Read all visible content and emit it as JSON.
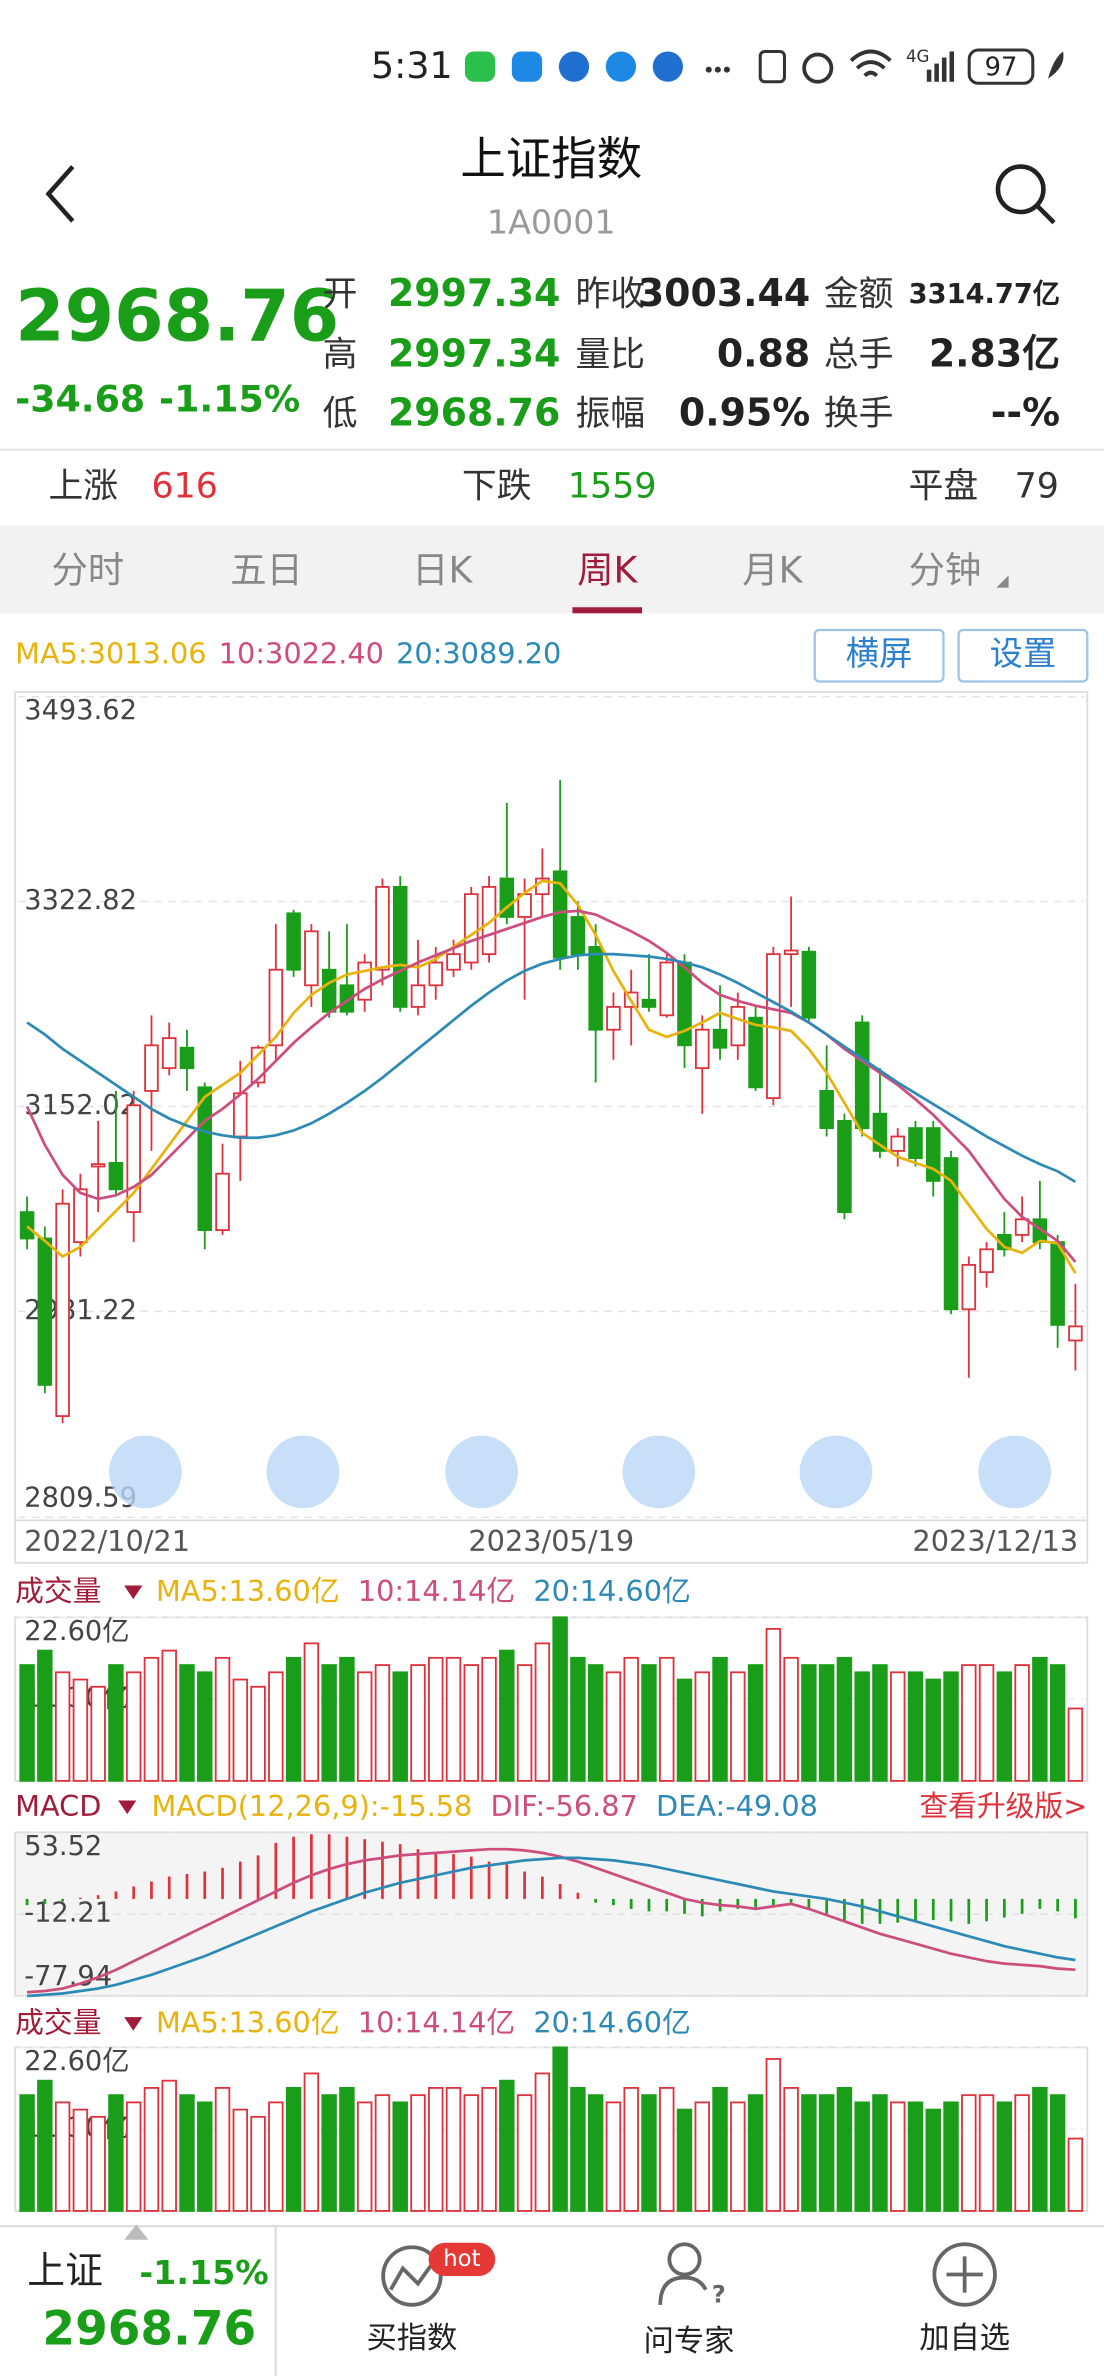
{
  "status_bar": {
    "time": "5:31",
    "network": "4G",
    "battery": "97"
  },
  "header": {
    "title": "上证指数",
    "code": "1A0001"
  },
  "quote": {
    "price": "2968.76",
    "change": "-34.68",
    "change_pct": "-1.15%",
    "fields": [
      {
        "label": "开",
        "value": "2997.34"
      },
      {
        "label": "昨收",
        "value": "3003.44"
      },
      {
        "label": "金额",
        "value": "3314.77亿"
      },
      {
        "label": "高",
        "value": "2997.34"
      },
      {
        "label": "量比",
        "value": "0.88"
      },
      {
        "label": "总手",
        "value": "2.83亿"
      },
      {
        "label": "低",
        "value": "2968.76"
      },
      {
        "label": "振幅",
        "value": "0.95%"
      },
      {
        "label": "换手",
        "value": "--%"
      }
    ]
  },
  "breadth": [
    {
      "label": "上涨",
      "value": "616"
    },
    {
      "label": "下跌",
      "value": "1559"
    },
    {
      "label": "平盘",
      "value": "79"
    }
  ],
  "tabs": [
    "分时",
    "五日",
    "日K",
    "周K",
    "月K",
    "分钟"
  ],
  "active_tab": 3,
  "buttons": [
    "横屏",
    "设置"
  ],
  "kline": {
    "ylim": [
      2809.59,
      3493.62
    ],
    "yticks": [
      3493.62,
      3322.82,
      3152.02,
      2981.22,
      2809.59
    ],
    "grid": true,
    "dates": [
      "2022/10/21",
      "2023/05/19",
      "2023/12/13"
    ],
    "up_color": "#e0323c",
    "down_color": "#1a9e1a",
    "open": [
      3064,
      3042,
      2894,
      3039,
      3102,
      3105,
      3064,
      3165,
      3184,
      3201,
      3168,
      3049,
      3127,
      3172,
      3203,
      3313,
      3253,
      3266,
      3253,
      3241,
      3266,
      3335,
      3235,
      3253,
      3266,
      3272,
      3279,
      3342,
      3310,
      3329,
      3348,
      3310,
      3285,
      3216,
      3235,
      3241,
      3228,
      3272,
      3184,
      3216,
      3203,
      3226,
      3159,
      3279,
      3281,
      3165,
      3140,
      3222,
      3146,
      3115,
      3134,
      3134,
      3109,
      2983,
      3014,
      3045,
      3045,
      3058,
      3039,
      2957
    ],
    "high": [
      3077,
      3052,
      3083,
      3096,
      3140,
      3165,
      3165,
      3228,
      3222,
      3216,
      3172,
      3121,
      3190,
      3203,
      3304,
      3316,
      3304,
      3298,
      3304,
      3279,
      3342,
      3344,
      3291,
      3285,
      3291,
      3335,
      3344,
      3405,
      3342,
      3367,
      3424,
      3323,
      3304,
      3247,
      3266,
      3279,
      3279,
      3279,
      3228,
      3253,
      3247,
      3235,
      3285,
      3327,
      3285,
      3203,
      3146,
      3228,
      3184,
      3134,
      3140,
      3140,
      3115,
      3027,
      3039,
      3064,
      3077,
      3090,
      3045,
      3004
    ],
    "low": [
      3033,
      2913,
      2888,
      3027,
      3064,
      3077,
      3039,
      3115,
      3178,
      3165,
      3033,
      3045,
      3090,
      3168,
      3190,
      3260,
      3235,
      3226,
      3228,
      3231,
      3253,
      3231,
      3228,
      3241,
      3260,
      3266,
      3272,
      3304,
      3241,
      3310,
      3266,
      3266,
      3172,
      3191,
      3203,
      3231,
      3226,
      3184,
      3146,
      3191,
      3191,
      3165,
      3153,
      3235,
      3222,
      3127,
      3058,
      3127,
      3109,
      3102,
      3102,
      3077,
      2979,
      2926,
      3001,
      3027,
      3039,
      3033,
      2951,
      2932
    ],
    "close": [
      3042,
      2920,
      3071,
      3083,
      3104,
      3083,
      3153,
      3203,
      3209,
      3184,
      3049,
      3096,
      3163,
      3201,
      3266,
      3266,
      3298,
      3231,
      3231,
      3272,
      3335,
      3235,
      3253,
      3272,
      3279,
      3329,
      3335,
      3310,
      3329,
      3342,
      3276,
      3279,
      3216,
      3235,
      3247,
      3235,
      3272,
      3203,
      3216,
      3201,
      3235,
      3168,
      3279,
      3282,
      3226,
      3134,
      3064,
      3134,
      3115,
      3127,
      3109,
      3090,
      2983,
      3020,
      3033,
      3033,
      3058,
      3039,
      2970,
      2968.76
    ],
    "ma": [
      {
        "label": "MA5:3013.06",
        "color": "#e8b30c",
        "values": [
          3052,
          3040,
          3027,
          3035,
          3050,
          3065,
          3080,
          3100,
          3120,
          3140,
          3160,
          3170,
          3180,
          3195,
          3210,
          3230,
          3245,
          3255,
          3262,
          3265,
          3268,
          3270,
          3268,
          3275,
          3285,
          3295,
          3305,
          3318,
          3330,
          3340,
          3338,
          3320,
          3295,
          3265,
          3240,
          3216,
          3210,
          3215,
          3222,
          3230,
          3225,
          3220,
          3218,
          3215,
          3200,
          3180,
          3155,
          3130,
          3120,
          3110,
          3105,
          3100,
          3090,
          3070,
          3050,
          3035,
          3030,
          3040,
          3038,
          3013.06
        ]
      },
      {
        "label": "10:3022.40",
        "color": "#cc4d7e",
        "values": [
          3152,
          3120,
          3095,
          3080,
          3075,
          3078,
          3085,
          3095,
          3110,
          3125,
          3140,
          3150,
          3162,
          3175,
          3190,
          3205,
          3218,
          3230,
          3240,
          3250,
          3258,
          3265,
          3272,
          3278,
          3284,
          3290,
          3295,
          3300,
          3305,
          3310,
          3314,
          3315,
          3312,
          3305,
          3298,
          3290,
          3280,
          3268,
          3255,
          3245,
          3240,
          3236,
          3233,
          3230,
          3222,
          3212,
          3200,
          3190,
          3180,
          3170,
          3158,
          3145,
          3130,
          3115,
          3095,
          3075,
          3060,
          3050,
          3040,
          3022.4
        ]
      },
      {
        "label": "20:3089.20",
        "color": "#2d8ab5",
        "values": [
          3222,
          3212,
          3200,
          3190,
          3180,
          3170,
          3160,
          3150,
          3142,
          3136,
          3131,
          3128,
          3126,
          3126,
          3128,
          3132,
          3138,
          3146,
          3155,
          3165,
          3176,
          3188,
          3200,
          3212,
          3224,
          3236,
          3247,
          3257,
          3265,
          3271,
          3275,
          3278,
          3279,
          3279,
          3278,
          3277,
          3275,
          3272,
          3268,
          3262,
          3255,
          3247,
          3239,
          3231,
          3222,
          3212,
          3202,
          3192,
          3182,
          3172,
          3163,
          3154,
          3145,
          3136,
          3127,
          3119,
          3111,
          3104,
          3098,
          3089.2
        ]
      }
    ]
  },
  "volume": {
    "title": "成交量",
    "legend": [
      {
        "label": "MA5:13.60亿",
        "color": "#e8b30c"
      },
      {
        "label": "10:14.14亿",
        "color": "#cc4d7e"
      },
      {
        "label": "20:14.60亿",
        "color": "#2d8ab5"
      }
    ],
    "ylim": [
      0,
      22.6
    ],
    "yticks": [
      {
        "value": 22.6,
        "label": "22.60亿"
      },
      {
        "value": 11.3,
        "label": "11.30亿"
      }
    ],
    "values": [
      16,
      18,
      15,
      14,
      13,
      16,
      15,
      17,
      18,
      16,
      15,
      17,
      14,
      13,
      15,
      17,
      19,
      16,
      17,
      15,
      16,
      15,
      16,
      17,
      17,
      16,
      17,
      18,
      16,
      19,
      22.6,
      17,
      16,
      15,
      17,
      16,
      17,
      14,
      15,
      17,
      15,
      16,
      21,
      17,
      16,
      16,
      17,
      15,
      16,
      15,
      15,
      14,
      15,
      16,
      16,
      15,
      16,
      17,
      16,
      10
    ]
  },
  "macd": {
    "title": "MACD",
    "upgrade": "查看升级版>",
    "legend": [
      {
        "label": "MACD(12,26,9):-15.58",
        "color": "#e8b30c"
      },
      {
        "label": "DIF:-56.87",
        "color": "#cc4d7e"
      },
      {
        "label": "DEA:-49.08",
        "color": "#2d8ab5"
      }
    ],
    "ylim": [
      -77.94,
      53.52
    ],
    "yticks": [
      53.52,
      -12.21,
      -77.94
    ],
    "hist": [
      -5,
      -4,
      -2,
      1,
      3,
      6,
      10,
      14,
      18,
      20,
      22,
      25,
      30,
      35,
      45,
      50,
      52,
      52,
      50,
      48,
      46,
      44,
      40,
      38,
      36,
      34,
      30,
      28,
      22,
      18,
      12,
      5,
      -3,
      -5,
      -8,
      -10,
      -10,
      -12,
      -14,
      -10,
      -8,
      -9,
      -5,
      -3,
      -8,
      -12,
      -18,
      -20,
      -20,
      -19,
      -18,
      -17,
      -18,
      -20,
      -18,
      -15,
      -12,
      -8,
      -10,
      -15.58
    ],
    "dif": [
      -75,
      -74,
      -72,
      -68,
      -63,
      -57,
      -50,
      -43,
      -36,
      -29,
      -22,
      -15,
      -8,
      -1,
      6,
      13,
      19,
      24,
      28,
      31,
      33,
      35,
      36,
      37,
      38,
      39,
      40,
      40,
      39,
      37,
      34,
      30,
      25,
      20,
      15,
      10,
      5,
      0,
      -3,
      -5,
      -6,
      -8,
      -6,
      -4,
      -8,
      -13,
      -18,
      -23,
      -28,
      -32,
      -36,
      -40,
      -44,
      -47,
      -50,
      -52,
      -53,
      -54,
      -56,
      -56.87
    ],
    "dea": [
      -78,
      -77,
      -76,
      -74,
      -72,
      -69,
      -65,
      -61,
      -56,
      -51,
      -46,
      -40,
      -34,
      -28,
      -22,
      -16,
      -10,
      -5,
      0,
      5,
      9,
      13,
      16,
      19,
      22,
      25,
      27,
      29,
      31,
      32,
      33,
      33,
      32,
      31,
      29,
      27,
      24,
      21,
      18,
      15,
      12,
      9,
      6,
      4,
      2,
      0,
      -3,
      -6,
      -10,
      -14,
      -18,
      -22,
      -26,
      -30,
      -34,
      -38,
      -41,
      -44,
      -47,
      -49.08
    ]
  },
  "bottom_bar": {
    "name": "上证",
    "change_pct": "-1.15%",
    "price": "2968.76",
    "items": [
      {
        "label": "买指数",
        "badge": "hot"
      },
      {
        "label": "问专家"
      },
      {
        "label": "加自选"
      }
    ]
  }
}
